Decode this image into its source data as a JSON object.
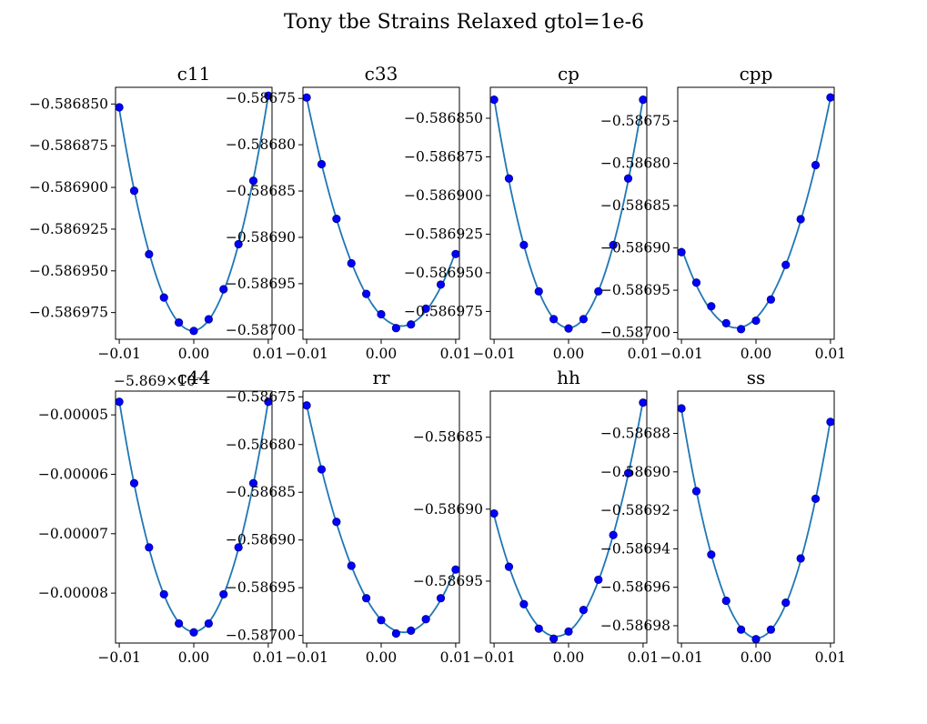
{
  "title": "Tony tbe Strains Relaxed gtol=1e-6",
  "colors": {
    "fit_line": "#1f77b4",
    "marker": "#0000ff"
  },
  "chart_data": [
    {
      "type": "scatter",
      "title": "c11",
      "x": [
        -0.01,
        -0.008,
        -0.006,
        -0.004,
        -0.002,
        0.0,
        0.002,
        0.004,
        0.006,
        0.008,
        0.01
      ],
      "y": [
        -0.586852,
        -0.586902,
        -0.58694,
        -0.586966,
        -0.586981,
        -0.586986,
        -0.586979,
        -0.586961,
        -0.586934,
        -0.586896,
        -0.586845
      ],
      "xlim": [
        -0.0105,
        0.0105
      ],
      "ylim": [
        -0.586991,
        -0.58684
      ],
      "xticks": [
        -0.01,
        0.0,
        0.01
      ],
      "xtick_labels": [
        "−0.01",
        "0.00",
        "0.01"
      ],
      "yticks": [
        -0.58685,
        -0.586875,
        -0.5869,
        -0.586925,
        -0.58695,
        -0.586975
      ],
      "ytick_labels": [
        "−0.586850",
        "−0.586875",
        "−0.586900",
        "−0.586925",
        "−0.586950",
        "−0.586975"
      ],
      "grid": false
    },
    {
      "type": "scatter",
      "title": "c33",
      "x": [
        -0.01,
        -0.008,
        -0.006,
        -0.004,
        -0.002,
        0.0,
        0.002,
        0.004,
        0.006,
        0.008,
        0.01
      ],
      "y": [
        -0.586749,
        -0.586821,
        -0.58688,
        -0.586928,
        -0.586961,
        -0.586983,
        -0.586998,
        -0.586994,
        -0.586977,
        -0.586951,
        -0.586918
      ],
      "xlim": [
        -0.0105,
        0.0105
      ],
      "ylim": [
        -0.58701,
        -0.586738
      ],
      "xticks": [
        -0.01,
        0.0,
        0.01
      ],
      "xtick_labels": [
        "−0.01",
        "0.00",
        "0.01"
      ],
      "yticks": [
        -0.58675,
        -0.5868,
        -0.58685,
        -0.5869,
        -0.58695,
        -0.587
      ],
      "ytick_labels": [
        "−0.58675",
        "−0.58680",
        "−0.58685",
        "−0.58690",
        "−0.58695",
        "−0.58700"
      ],
      "grid": false
    },
    {
      "type": "scatter",
      "title": "cp",
      "x": [
        -0.01,
        -0.008,
        -0.006,
        -0.004,
        -0.002,
        0.0,
        0.002,
        0.004,
        0.006,
        0.008,
        0.01
      ],
      "y": [
        -0.586838,
        -0.586889,
        -0.586932,
        -0.586962,
        -0.58698,
        -0.586986,
        -0.58698,
        -0.586962,
        -0.586932,
        -0.586889,
        -0.586838
      ],
      "xlim": [
        -0.0105,
        0.0105
      ],
      "ylim": [
        -0.586993,
        -0.58683
      ],
      "xticks": [
        -0.01,
        0.0,
        0.01
      ],
      "xtick_labels": [
        "−0.01",
        "0.00",
        "0.01"
      ],
      "yticks": [
        -0.58685,
        -0.586875,
        -0.5869,
        -0.586925,
        -0.58695,
        -0.586975
      ],
      "ytick_labels": [
        "−0.586850",
        "−0.586875",
        "−0.586900",
        "−0.586925",
        "−0.586950",
        "−0.586975"
      ],
      "grid": false
    },
    {
      "type": "scatter",
      "title": "cpp",
      "x": [
        -0.01,
        -0.008,
        -0.006,
        -0.004,
        -0.002,
        0.0,
        0.002,
        0.004,
        0.006,
        0.008,
        0.01
      ],
      "y": [
        -0.586905,
        -0.586941,
        -0.586969,
        -0.586989,
        -0.586996,
        -0.586986,
        -0.586961,
        -0.58692,
        -0.586866,
        -0.586802,
        -0.586722
      ],
      "xlim": [
        -0.0105,
        0.0105
      ],
      "ylim": [
        -0.587008,
        -0.58671
      ],
      "xticks": [
        -0.01,
        0.0,
        0.01
      ],
      "xtick_labels": [
        "−0.01",
        "0.00",
        "0.01"
      ],
      "yticks": [
        -0.58675,
        -0.5868,
        -0.58685,
        -0.5869,
        -0.58695,
        -0.587
      ],
      "ytick_labels": [
        "−0.58675",
        "−0.58680",
        "−0.58685",
        "−0.58690",
        "−0.58695",
        "−0.58700"
      ],
      "grid": false
    },
    {
      "type": "scatter",
      "title": "c44",
      "offset_label": "−5.869×10⁻¹",
      "x": [
        -0.01,
        -0.008,
        -0.006,
        -0.004,
        -0.002,
        0.0,
        0.002,
        0.004,
        0.006,
        0.008,
        0.01
      ],
      "y": [
        -4.78e-05,
        -6.15e-05,
        -7.23e-05,
        -8.02e-05,
        -8.51e-05,
        -8.66e-05,
        -8.51e-05,
        -8.02e-05,
        -7.23e-05,
        -6.15e-05,
        -4.78e-05
      ],
      "xlim": [
        -0.0105,
        0.0105
      ],
      "ylim": [
        -8.84e-05,
        -4.6e-05
      ],
      "xticks": [
        -0.01,
        0.0,
        0.01
      ],
      "xtick_labels": [
        "−0.01",
        "0.00",
        "0.01"
      ],
      "yticks": [
        -5e-05,
        -6e-05,
        -7e-05,
        -8e-05
      ],
      "ytick_labels": [
        "−0.00005",
        "−0.00006",
        "−0.00007",
        "−0.00008"
      ],
      "grid": false
    },
    {
      "type": "scatter",
      "title": "rr",
      "x": [
        -0.01,
        -0.008,
        -0.006,
        -0.004,
        -0.002,
        0.0,
        0.002,
        0.004,
        0.006,
        0.008,
        0.01
      ],
      "y": [
        -0.586759,
        -0.586826,
        -0.586881,
        -0.586927,
        -0.586961,
        -0.586984,
        -0.586998,
        -0.586995,
        -0.586983,
        -0.586961,
        -0.586931
      ],
      "xlim": [
        -0.0105,
        0.0105
      ],
      "ylim": [
        -0.587008,
        -0.586744
      ],
      "xticks": [
        -0.01,
        0.0,
        0.01
      ],
      "xtick_labels": [
        "−0.01",
        "0.00",
        "0.01"
      ],
      "yticks": [
        -0.58675,
        -0.5868,
        -0.58685,
        -0.5869,
        -0.58695,
        -0.587
      ],
      "ytick_labels": [
        "−0.58675",
        "−0.58680",
        "−0.58685",
        "−0.58690",
        "−0.58695",
        "−0.58700"
      ],
      "grid": false
    },
    {
      "type": "scatter",
      "title": "hh",
      "x": [
        -0.01,
        -0.008,
        -0.006,
        -0.004,
        -0.002,
        0.0,
        0.002,
        0.004,
        0.006,
        0.008,
        0.01
      ],
      "y": [
        -0.586903,
        -0.58694,
        -0.586966,
        -0.586983,
        -0.58699,
        -0.586985,
        -0.58697,
        -0.586949,
        -0.586918,
        -0.586875,
        -0.586826
      ],
      "xlim": [
        -0.0105,
        0.0105
      ],
      "ylim": [
        -0.586993,
        -0.586818
      ],
      "xticks": [
        -0.01,
        0.0,
        0.01
      ],
      "xtick_labels": [
        "−0.01",
        "0.00",
        "0.01"
      ],
      "yticks": [
        -0.58685,
        -0.5869,
        -0.58695
      ],
      "ytick_labels": [
        "−0.58685",
        "−0.58690",
        "−0.58695"
      ],
      "grid": false
    },
    {
      "type": "scatter",
      "title": "ss",
      "x": [
        -0.01,
        -0.008,
        -0.006,
        -0.004,
        -0.002,
        0.0,
        0.002,
        0.004,
        0.006,
        0.008,
        0.01
      ],
      "y": [
        -0.586867,
        -0.58691,
        -0.586943,
        -0.586967,
        -0.586982,
        -0.586987,
        -0.586982,
        -0.586968,
        -0.586945,
        -0.586914,
        -0.586874
      ],
      "xlim": [
        -0.0105,
        0.0105
      ],
      "ylim": [
        -0.586989,
        -0.586858
      ],
      "xticks": [
        -0.01,
        0.0,
        0.01
      ],
      "xtick_labels": [
        "−0.01",
        "0.00",
        "0.01"
      ],
      "yticks": [
        -0.58688,
        -0.5869,
        -0.58692,
        -0.58694,
        -0.58696,
        -0.58698
      ],
      "ytick_labels": [
        "−0.58688",
        "−0.58690",
        "−0.58692",
        "−0.58694",
        "−0.58696",
        "−0.58698"
      ],
      "grid": false
    }
  ]
}
